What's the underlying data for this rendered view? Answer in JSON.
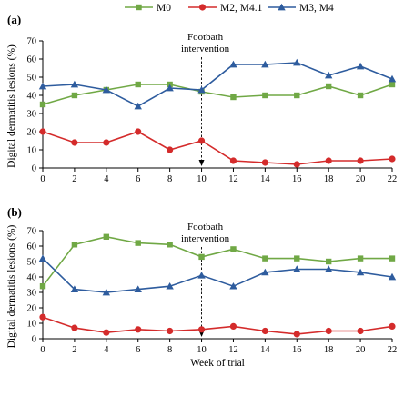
{
  "legend": {
    "items": [
      {
        "key": "m0",
        "label": "M0",
        "color": "#70a845",
        "marker": "square"
      },
      {
        "key": "m2",
        "label": "M2, M4.1",
        "color": "#d42b2b",
        "marker": "circle"
      },
      {
        "key": "m3",
        "label": "M3, M4",
        "color": "#2e5c9e",
        "marker": "triangle"
      }
    ]
  },
  "chart_data": [
    {
      "type": "line",
      "panel_label": "(a)",
      "ylabel": "Digital dermatitis lesions (%)",
      "xlabel": "",
      "x": [
        0,
        2,
        4,
        6,
        8,
        10,
        12,
        14,
        16,
        18,
        20,
        22
      ],
      "xticks": [
        0,
        2,
        4,
        6,
        8,
        10,
        12,
        14,
        16,
        18,
        20,
        22
      ],
      "yticks": [
        0,
        10,
        20,
        30,
        40,
        50,
        60,
        70
      ],
      "ylim": [
        0,
        70
      ],
      "xlim": [
        0,
        22
      ],
      "grid": false,
      "legend_position": "top",
      "annotation": {
        "line1": "Footbath",
        "line2": "intervention",
        "x": 10
      },
      "series": [
        {
          "key": "m0",
          "name": "M0",
          "color": "#70a845",
          "marker": "square",
          "values": [
            35,
            40,
            43,
            46,
            46,
            42,
            39,
            40,
            40,
            45,
            40,
            46
          ]
        },
        {
          "key": "m2",
          "name": "M2, M4.1",
          "color": "#d42b2b",
          "marker": "circle",
          "values": [
            20,
            14,
            14,
            20,
            10,
            15,
            4,
            3,
            2,
            4,
            4,
            5
          ]
        },
        {
          "key": "m3",
          "name": "M3, M4",
          "color": "#2e5c9e",
          "marker": "triangle",
          "values": [
            45,
            46,
            43,
            34,
            44,
            43,
            57,
            57,
            58,
            51,
            56,
            49
          ]
        }
      ]
    },
    {
      "type": "line",
      "panel_label": "(b)",
      "ylabel": "Digital dermatitis lesions (%)",
      "xlabel": "Week of trial",
      "x": [
        0,
        2,
        4,
        6,
        8,
        10,
        12,
        14,
        16,
        18,
        20,
        22
      ],
      "xticks": [
        0,
        2,
        4,
        6,
        8,
        10,
        12,
        14,
        16,
        18,
        20,
        22
      ],
      "yticks": [
        0,
        10,
        20,
        30,
        40,
        50,
        60,
        70
      ],
      "ylim": [
        0,
        70
      ],
      "xlim": [
        0,
        22
      ],
      "grid": false,
      "annotation": {
        "line1": "Footbath",
        "line2": "intervention",
        "x": 10
      },
      "series": [
        {
          "key": "m0",
          "name": "M0",
          "color": "#70a845",
          "marker": "square",
          "values": [
            34,
            61,
            66,
            62,
            61,
            53,
            58,
            52,
            52,
            50,
            52,
            52
          ]
        },
        {
          "key": "m2",
          "name": "M2, M4.1",
          "color": "#d42b2b",
          "marker": "circle",
          "values": [
            14,
            7,
            4,
            6,
            5,
            6,
            8,
            5,
            3,
            5,
            5,
            8
          ]
        },
        {
          "key": "m3",
          "name": "M3, M4",
          "color": "#2e5c9e",
          "marker": "triangle",
          "values": [
            52,
            32,
            30,
            32,
            34,
            41,
            34,
            43,
            45,
            45,
            43,
            40
          ]
        }
      ]
    }
  ]
}
